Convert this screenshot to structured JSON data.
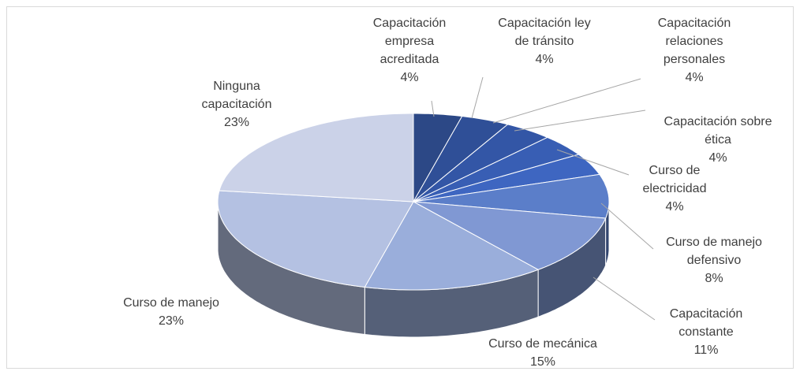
{
  "chart_data": {
    "type": "pie3d",
    "categories": [
      "Capacitación empresa acreditada",
      "Capacitación ley de tránsito",
      "Capacitación relaciones personales",
      "Capacitación sobre ética",
      "Curso de electricidad",
      "Curso de manejo defensivo",
      "Capacitación constante",
      "Curso de mecánica",
      "Curso de manejo",
      "Ninguna capacitación"
    ],
    "values": [
      4,
      4,
      4,
      4,
      4,
      8,
      11,
      15,
      23,
      23
    ],
    "value_labels": [
      "4%",
      "4%",
      "4%",
      "4%",
      "4%",
      "8%",
      "11%",
      "15%",
      "23%",
      "23%"
    ],
    "colors": [
      "#2c4886",
      "#2f4f97",
      "#3356a6",
      "#385eb4",
      "#3e66c1",
      "#5b7ec9",
      "#8098d3",
      "#9aaedb",
      "#b4c1e2",
      "#cbd2e8"
    ]
  }
}
